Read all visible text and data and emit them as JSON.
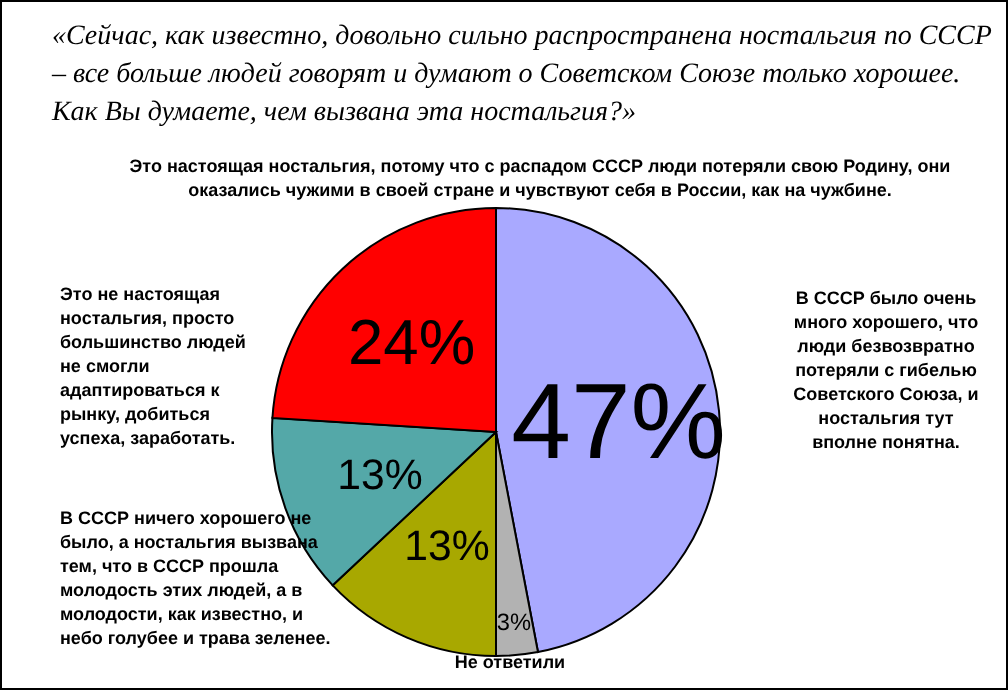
{
  "chart_data": {
    "type": "pie",
    "title": "«Сейчас, как известно, довольно сильно распространена ностальгия по СССР – все больше людей говорят и думают о Советском Союзе только хорошее. Как Вы думаете, чем вызвана эта ностальгия?»",
    "categories": [
      "В СССР было очень много хорошего, что люди безвозвратно потеряли с гибелью Советского Союза, и ностальгия тут вполне понятна.",
      "Не ответили",
      "В СССР ничего хорошего не было, а ностальгия вызвана тем, что в СССР прошла молодость этих людей, а в молодости, как известно, и небо голубее и трава зеленее.",
      "Это не настоящая ностальгия, просто большинство людей не смогли адаптироваться к рынку, добиться успеха, заработать.",
      "Это настоящая ностальгия, потому что с распадом СССР люди потеряли свою Родину, они оказались чужими в своей стране и чувствуют себя в России, как на чужбине."
    ],
    "values": [
      47,
      3,
      13,
      13,
      24
    ],
    "value_labels": [
      "47%",
      "3%",
      "13%",
      "13%",
      "24%"
    ],
    "colors": [
      "#a9a9ff",
      "#b2b2b2",
      "#a8a800",
      "#54a8a8",
      "#ff0000"
    ]
  }
}
